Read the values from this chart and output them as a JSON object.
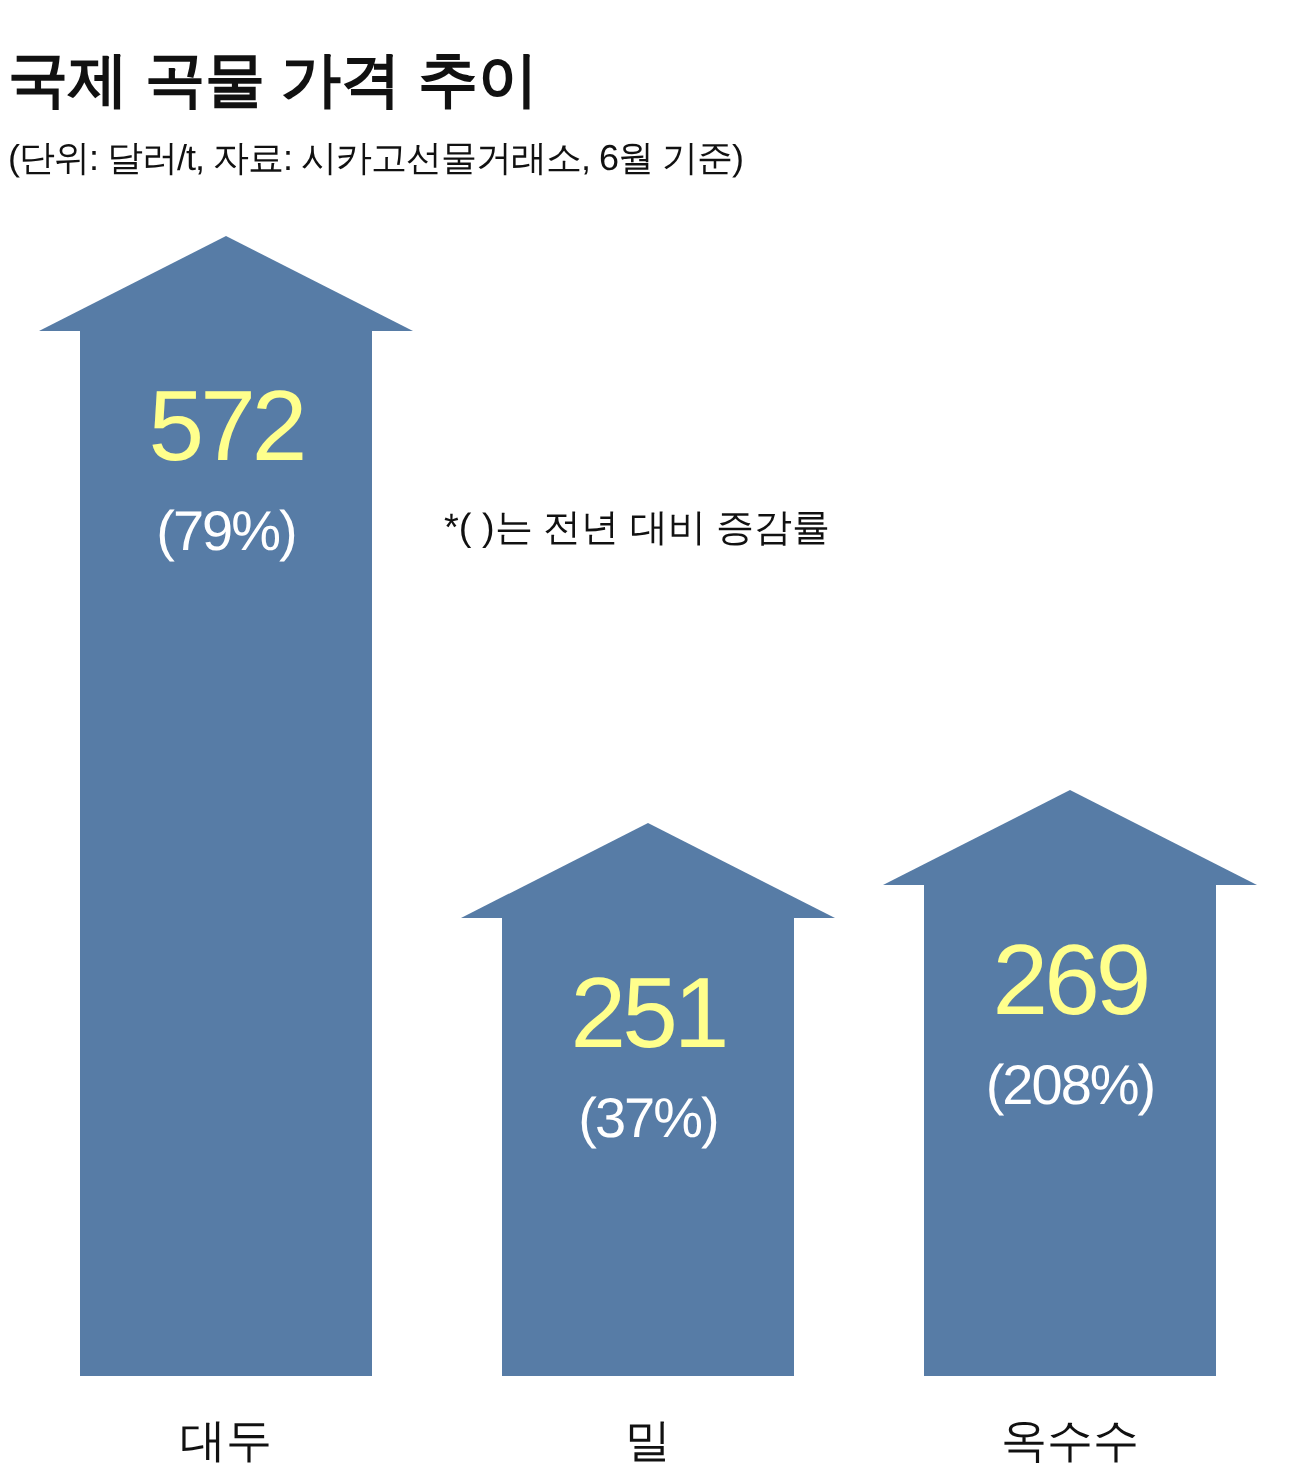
{
  "chart_data": {
    "type": "bar",
    "title": "국제 곡물 가격 추이",
    "subtitle": "(단위: 달러/t, 자료: 시카고선물거래소, 6월 기준)",
    "categories": [
      "대두",
      "밀",
      "옥수수"
    ],
    "values": [
      572,
      251,
      269
    ],
    "color": "#577ca6",
    "data_labels": true,
    "value_labels": [
      "572",
      "251",
      "269"
    ],
    "annotations": [
      "(79%)",
      "(37%)",
      "(208%)",
      "*(  )는 전년 대비 증감률"
    ]
  }
}
